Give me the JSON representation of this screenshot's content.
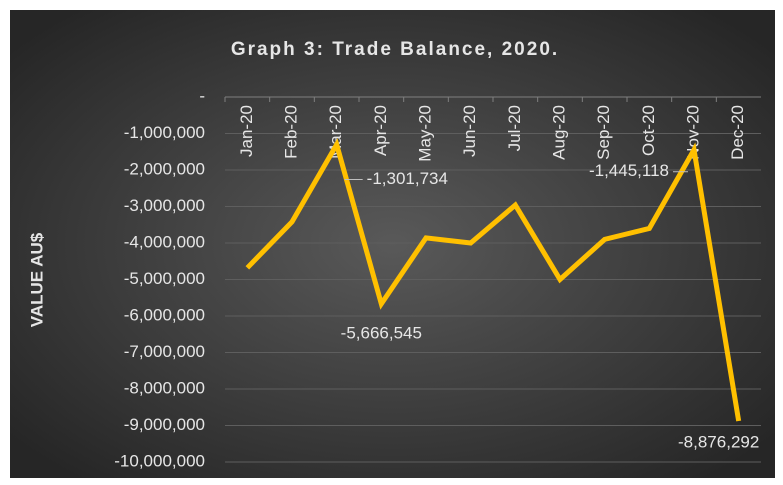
{
  "chart_data": {
    "type": "line",
    "title": "Graph 3: Trade Balance, 2020.",
    "ylabel": "VALUE AU$",
    "categories": [
      "Jan-20",
      "Feb-20",
      "Mar-20",
      "Apr-20",
      "May-20",
      "Jun-20",
      "Jul-20",
      "Aug-20",
      "Sep-20",
      "Oct-20",
      "Nov-20",
      "Dec-20"
    ],
    "series": [
      {
        "name": "Trade Balance",
        "color": "#ffc000",
        "values": [
          -4680000,
          -3420000,
          -1301734,
          -5666545,
          -3860000,
          -4000000,
          -2960000,
          -5000000,
          -3900000,
          -3600000,
          -1445118,
          -8876292
        ],
        "value_labels": [
          null,
          null,
          "-1,301,734",
          "-5,666,545",
          null,
          null,
          null,
          null,
          null,
          null,
          "-1,445,118",
          "-8,876,292"
        ]
      }
    ],
    "ylim": [
      -10000000,
      0
    ],
    "yticks": [
      {
        "value": 0,
        "label": "-"
      },
      {
        "value": -1000000,
        "label": "-1,000,000"
      },
      {
        "value": -2000000,
        "label": "-2,000,000"
      },
      {
        "value": -3000000,
        "label": "-3,000,000"
      },
      {
        "value": -4000000,
        "label": "-4,000,000"
      },
      {
        "value": -5000000,
        "label": "-5,000,000"
      },
      {
        "value": -6000000,
        "label": "-6,000,000"
      },
      {
        "value": -7000000,
        "label": "-7,000,000"
      },
      {
        "value": -8000000,
        "label": "-8,000,000"
      },
      {
        "value": -9000000,
        "label": "-9,000,000"
      },
      {
        "value": -10000000,
        "label": "-10,000,000"
      }
    ],
    "grid": true
  }
}
